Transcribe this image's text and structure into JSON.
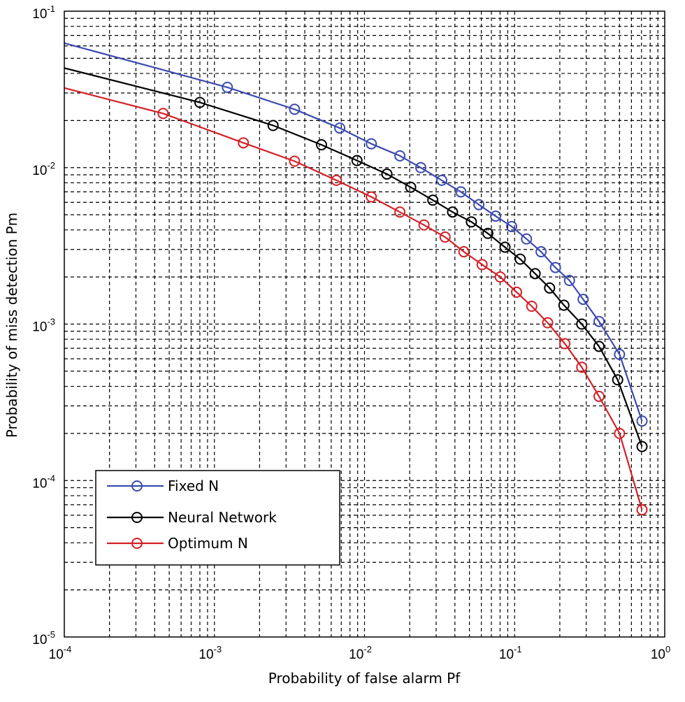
{
  "chart_data": {
    "type": "line",
    "xscale": "log",
    "yscale": "log",
    "xlabel": "Probability of false alarm Pf",
    "ylabel": "Probability of miss detection Pm",
    "xlim": [
      0.0001,
      1
    ],
    "ylim": [
      1e-05,
      0.1
    ],
    "grid": true,
    "grid_style": "dashed",
    "xticks": [
      {
        "value": 0.0001,
        "base": "10",
        "exp": "-4"
      },
      {
        "value": 0.001,
        "base": "10",
        "exp": "-3"
      },
      {
        "value": 0.01,
        "base": "10",
        "exp": "-2"
      },
      {
        "value": 0.1,
        "base": "10",
        "exp": "-1"
      },
      {
        "value": 1,
        "base": "10",
        "exp": "0"
      }
    ],
    "yticks": [
      {
        "value": 1e-05,
        "base": "10",
        "exp": "-5"
      },
      {
        "value": 0.0001,
        "base": "10",
        "exp": "-4"
      },
      {
        "value": 0.001,
        "base": "10",
        "exp": "-3"
      },
      {
        "value": 0.01,
        "base": "10",
        "exp": "-2"
      },
      {
        "value": 0.1,
        "base": "10",
        "exp": "-1"
      }
    ],
    "legend_position": "lower-left",
    "series": [
      {
        "name": "Fixed N",
        "color": "#3c4bb0",
        "marker": "circle",
        "x": [
          0.0001,
          0.00122,
          0.00342,
          0.00684,
          0.0111,
          0.0172,
          0.0237,
          0.0327,
          0.0438,
          0.0578,
          0.0747,
          0.0956,
          0.12,
          0.15,
          0.187,
          0.232,
          0.286,
          0.365,
          0.5,
          0.706
        ],
        "y": [
          0.0625,
          0.0326,
          0.0236,
          0.0179,
          0.0142,
          0.0119,
          0.01,
          0.0083,
          0.007,
          0.0058,
          0.0049,
          0.0042,
          0.0035,
          0.0029,
          0.0023,
          0.0019,
          0.00144,
          0.00104,
          0.00064,
          0.00024
        ],
        "marker_indices": [
          1,
          2,
          3,
          4,
          5,
          6,
          7,
          8,
          9,
          10,
          11,
          12,
          13,
          14,
          15,
          16,
          17,
          18,
          19
        ]
      },
      {
        "name": "Neural Network",
        "color": "#000000",
        "marker": "circle",
        "x": [
          0.0001,
          0.0008,
          0.00246,
          0.00517,
          0.00891,
          0.0141,
          0.0203,
          0.0285,
          0.0386,
          0.0515,
          0.0663,
          0.0863,
          0.109,
          0.137,
          0.171,
          0.213,
          0.28,
          0.365,
          0.486,
          0.706
        ],
        "y": [
          0.0433,
          0.0261,
          0.0186,
          0.014,
          0.0111,
          0.0091,
          0.0075,
          0.0062,
          0.0052,
          0.0045,
          0.0038,
          0.0031,
          0.0026,
          0.0021,
          0.0017,
          0.00132,
          0.001,
          0.00072,
          0.00044,
          0.000165
        ],
        "marker_indices": [
          1,
          2,
          3,
          4,
          5,
          6,
          7,
          8,
          9,
          10,
          11,
          12,
          13,
          14,
          15,
          16,
          17,
          18,
          19
        ]
      },
      {
        "name": "Optimum N",
        "color": "#d42027",
        "marker": "circle",
        "x": [
          0.0001,
          0.000455,
          0.00156,
          0.00342,
          0.0065,
          0.0111,
          0.0172,
          0.0249,
          0.0344,
          0.0459,
          0.0607,
          0.0802,
          0.103,
          0.13,
          0.166,
          0.216,
          0.28,
          0.365,
          0.5,
          0.706
        ],
        "y": [
          0.0323,
          0.0222,
          0.0144,
          0.011,
          0.0083,
          0.0065,
          0.0052,
          0.0043,
          0.0036,
          0.0029,
          0.0024,
          0.002,
          0.0016,
          0.0013,
          0.00102,
          0.00075,
          0.00053,
          0.000345,
          0.0002,
          6.5e-05
        ],
        "marker_indices": [
          1,
          2,
          3,
          4,
          5,
          6,
          7,
          8,
          9,
          10,
          11,
          12,
          13,
          14,
          15,
          16,
          17,
          18,
          19
        ]
      }
    ]
  }
}
